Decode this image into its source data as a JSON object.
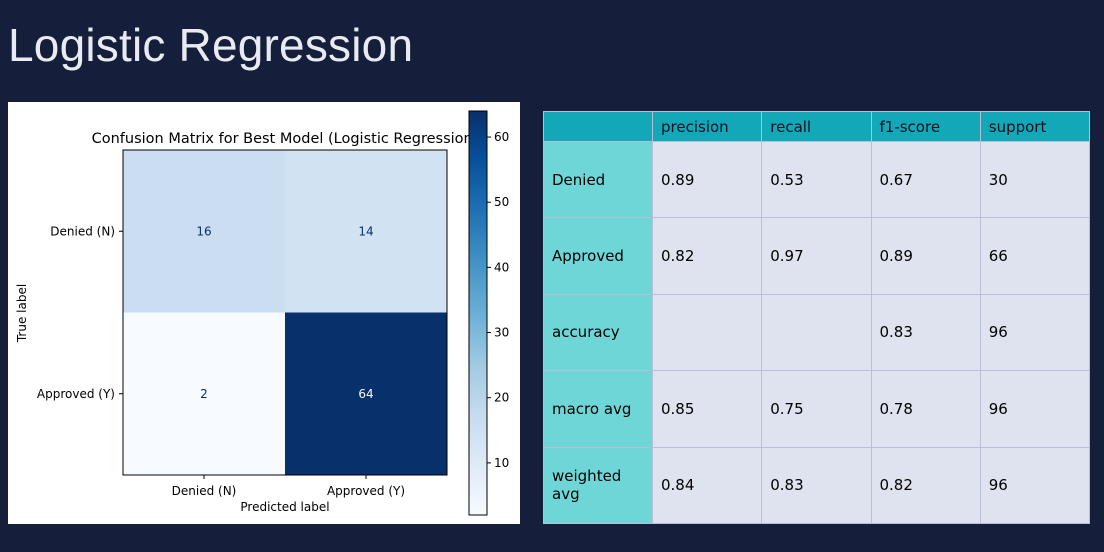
{
  "slide": {
    "title": "Logistic Regression"
  },
  "chart_data": {
    "type": "heatmap",
    "title": "Confusion Matrix for Best Model (Logistic Regression)",
    "xlabel": "Predicted label",
    "ylabel": "True label",
    "x_tick_labels": [
      "Denied (N)",
      "Approved (Y)"
    ],
    "y_tick_labels": [
      "Denied (N)",
      "Approved (Y)"
    ],
    "matrix": [
      [
        16,
        14
      ],
      [
        2,
        64
      ]
    ],
    "colormap": "Blues",
    "colorbar": {
      "min": 2,
      "max": 64,
      "ticks": [
        10,
        20,
        30,
        40,
        50,
        60
      ]
    }
  },
  "report_table": {
    "columns": [
      "",
      "precision",
      "recall",
      "f1-score",
      "support"
    ],
    "rows": [
      {
        "label": "Denied",
        "precision": "0.89",
        "recall": "0.53",
        "f1": "0.67",
        "support": "30"
      },
      {
        "label": "Approved",
        "precision": "0.82",
        "recall": "0.97",
        "f1": "0.89",
        "support": "66"
      },
      {
        "label": "accuracy",
        "precision": "",
        "recall": "",
        "f1": "0.83",
        "support": "96"
      },
      {
        "label": "macro avg",
        "precision": "0.85",
        "recall": "0.75",
        "f1": "0.78",
        "support": "96"
      },
      {
        "label": "weighted avg",
        "precision": "0.84",
        "recall": "0.83",
        "f1": "0.82",
        "support": "96"
      }
    ]
  }
}
